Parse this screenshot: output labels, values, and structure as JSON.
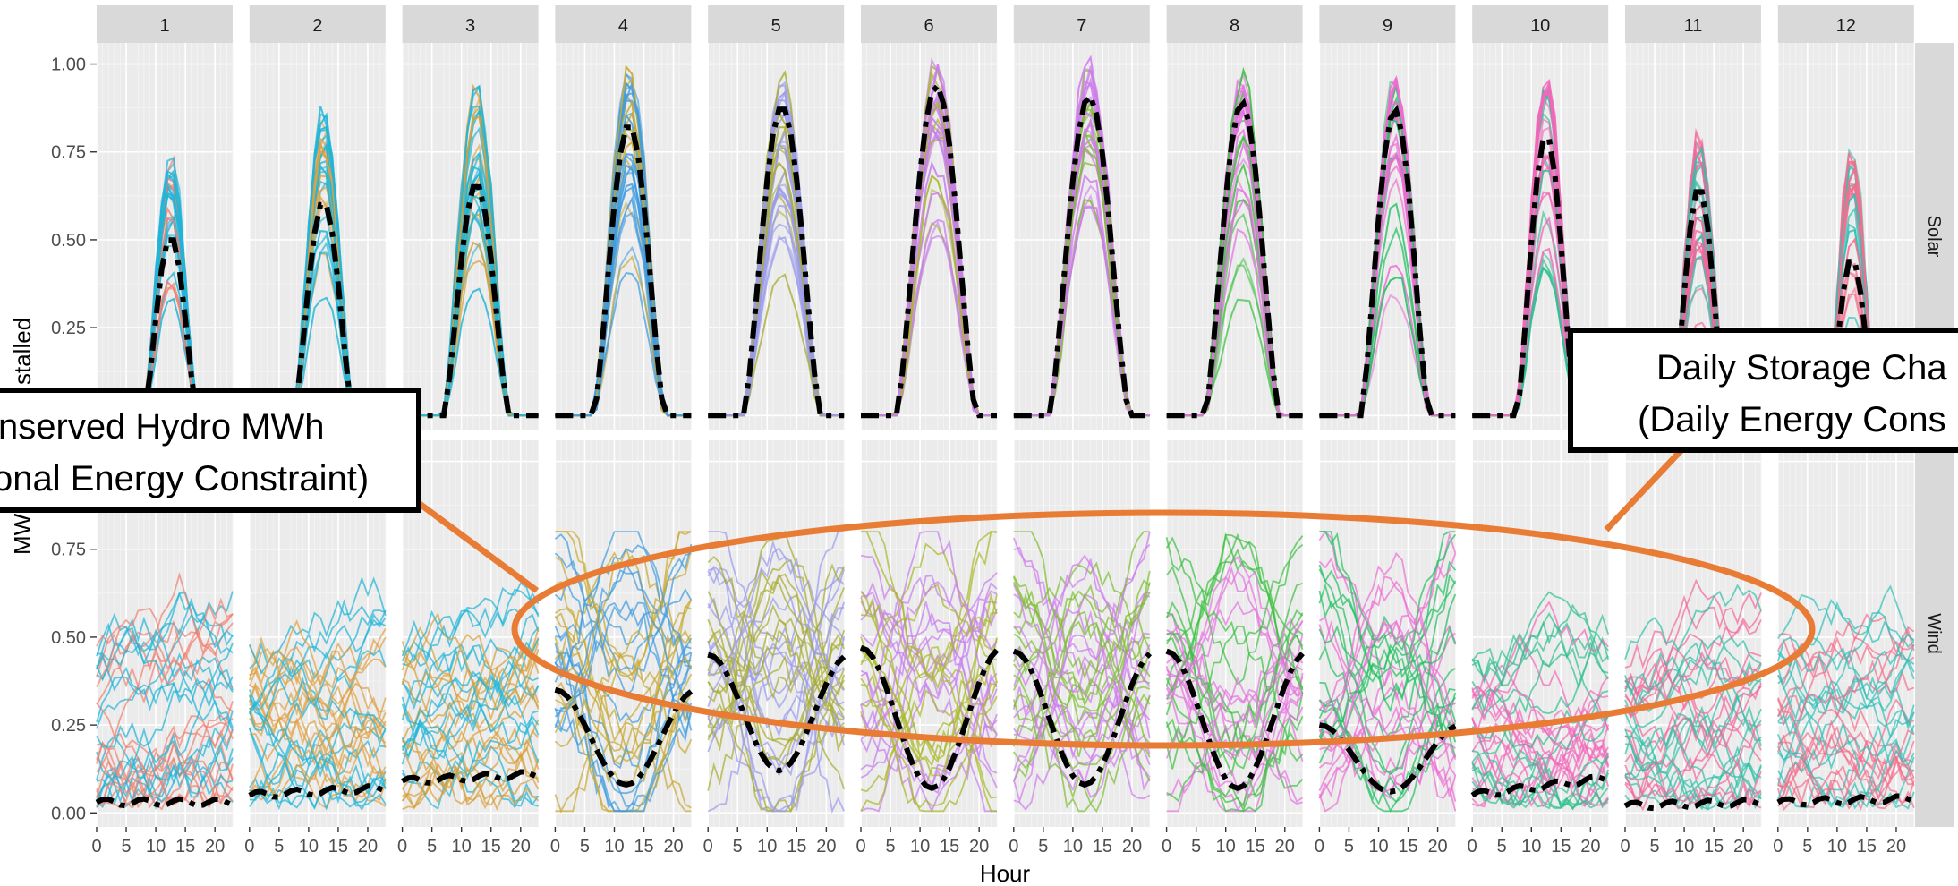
{
  "chart_data": {
    "type": "line",
    "xlabel": "Hour",
    "ylabel": "MW/Installed",
    "ylabel_visible": "MW",
    "ylabel_visible_2": "stalled",
    "x_ticks": [
      0,
      5,
      10,
      15,
      20
    ],
    "x_tick_labels": [
      "0",
      "5",
      "10",
      "15",
      "20"
    ],
    "y_ticks": [
      0,
      0.25,
      0.5,
      0.75,
      1.0
    ],
    "y_tick_labels": [
      "0.00",
      "0.25",
      "0.50",
      "0.75",
      "1.00"
    ],
    "xlim": [
      0,
      23
    ],
    "ylim": [
      -0.04,
      1.06
    ],
    "grid": true,
    "months": [
      "1",
      "2",
      "3",
      "4",
      "5",
      "6",
      "7",
      "8",
      "9",
      "10",
      "11",
      "12"
    ],
    "rows": [
      "Solar",
      "Wind"
    ],
    "month_colors": [
      "#1FB5D8",
      "#1FB5D8",
      "#1FB5D8",
      "#3F9BE0",
      "#9A9AEE",
      "#C77CF0",
      "#CF7BEE",
      "#E572E0",
      "#EE6BD4",
      "#F266BA",
      "#F3669A",
      "#F56E8C"
    ],
    "secondary_colors": [
      "#F08070",
      "#E0A040",
      "#D8A03A",
      "#C8A830",
      "#A8AC30",
      "#A8B828",
      "#7CBE30",
      "#3CC040",
      "#20C060",
      "#30C090",
      "#30C0A8",
      "#30C0B8"
    ],
    "solar_mean_peak": [
      0.51,
      0.61,
      0.66,
      0.83,
      0.88,
      0.94,
      0.91,
      0.89,
      0.87,
      0.8,
      0.65,
      0.45
    ],
    "solar_peak_envelope": [
      0.76,
      0.88,
      0.99,
      1.02,
      1.02,
      1.02,
      1.02,
      1.03,
      0.98,
      0.99,
      0.83,
      0.79
    ],
    "solar_hours_start": [
      8,
      7.5,
      7,
      6.5,
      6,
      6,
      6,
      6.5,
      7,
      7.5,
      8,
      8.5
    ],
    "solar_hours_end": [
      17,
      17.5,
      18,
      18.5,
      19,
      19.5,
      19.5,
      19,
      18.5,
      17.5,
      17,
      16.5
    ],
    "wind_mean_min": [
      0.03,
      0.05,
      0.09,
      0.08,
      0.12,
      0.07,
      0.08,
      0.07,
      0.06,
      0.05,
      0.02,
      0.03
    ],
    "wind_mean_max": [
      0.03,
      0.07,
      0.11,
      0.35,
      0.45,
      0.47,
      0.46,
      0.46,
      0.25,
      0.1,
      0.03,
      0.04
    ],
    "wind_diurnal": [
      false,
      false,
      false,
      true,
      true,
      true,
      true,
      true,
      true,
      false,
      false,
      false
    ],
    "annotations": {
      "hydro_line1": "nserved Hydro MWh",
      "hydro_line2": "onal Energy Constraint)",
      "storage_line1": "Daily Storage Cha",
      "storage_line2": "(Daily Energy Cons"
    },
    "callout_color": "#E97C35"
  }
}
